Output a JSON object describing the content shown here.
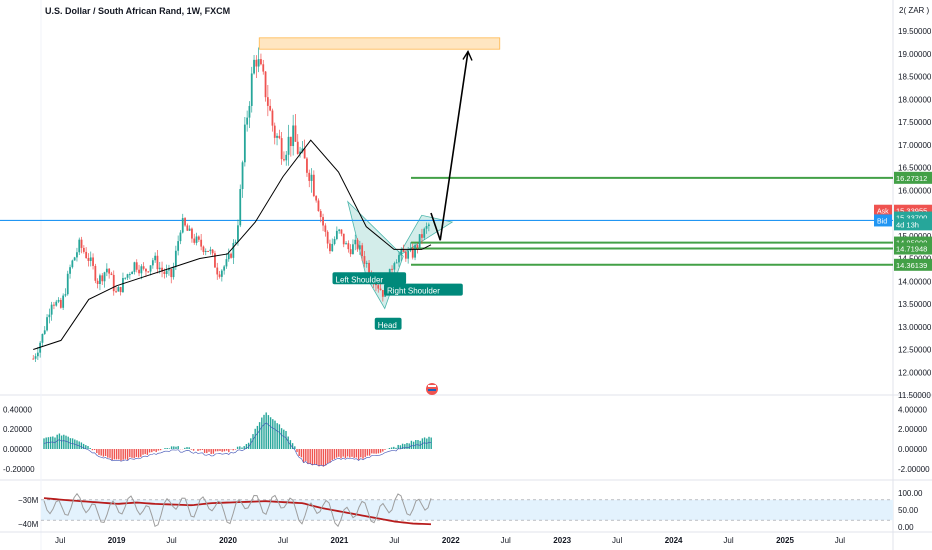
{
  "header": {
    "symbol_title": "U.S. Dollar / South African Rand, 1W, FXCM",
    "currency_badge": "2( ZAR )"
  },
  "colors": {
    "up": "#26a69a",
    "down": "#ef5350",
    "ma_line": "#000000",
    "blue_line": "#2196f3",
    "green_levels": "#43a047",
    "pattern_fill": "#80cbc4",
    "target_box": "#ffe0b2",
    "osc_fill": "#e3f2fd",
    "osc_dark_red": "#b71c1c",
    "osc_grey": "#9e9e9e"
  },
  "chart_data": [
    {
      "type": "candlestick",
      "title": "U.S. Dollar / South African Rand, 1W, FXCM",
      "xlabel": "",
      "ylabel": "",
      "x_ticks": [
        "Jul",
        "2019",
        "Jul",
        "2020",
        "Jul",
        "2021",
        "Jul",
        "2022",
        "Jul",
        "2023",
        "Jul",
        "2024",
        "Jul",
        "2025",
        "Jul"
      ],
      "y_ticks": [
        "19.50000",
        "19.00000",
        "18.50000",
        "18.00000",
        "17.50000",
        "17.00000",
        "16.50000",
        "16.00000",
        "15.50000",
        "15.00000",
        "14.50000",
        "14.00000",
        "13.50000",
        "13.00000",
        "12.50000",
        "12.00000",
        "11.50000"
      ],
      "ylim": [
        11.5,
        19.5
      ],
      "grid": false,
      "price_path": [
        [
          "2018-04",
          12.3
        ],
        [
          "2018-05",
          12.8
        ],
        [
          "2018-06",
          13.6
        ],
        [
          "2018-07",
          13.4
        ],
        [
          "2018-08",
          14.3
        ],
        [
          "2018-09",
          14.8
        ],
        [
          "2018-10",
          14.5
        ],
        [
          "2018-11",
          14.0
        ],
        [
          "2018-12",
          14.3
        ],
        [
          "2019-01",
          13.7
        ],
        [
          "2019-02",
          14.1
        ],
        [
          "2019-03",
          14.4
        ],
        [
          "2019-04",
          14.2
        ],
        [
          "2019-05",
          14.5
        ],
        [
          "2019-06",
          14.2
        ],
        [
          "2019-07",
          14.1
        ],
        [
          "2019-08",
          15.3
        ],
        [
          "2019-09",
          15.0
        ],
        [
          "2019-10",
          14.8
        ],
        [
          "2019-11",
          14.7
        ],
        [
          "2019-12",
          14.2
        ],
        [
          "2020-01",
          14.4
        ],
        [
          "2020-02",
          15.0
        ],
        [
          "2020-03",
          17.5
        ],
        [
          "2020-04",
          19.0
        ],
        [
          "2020-05",
          18.3
        ],
        [
          "2020-06",
          17.3
        ],
        [
          "2020-07",
          16.9
        ],
        [
          "2020-08",
          17.2
        ],
        [
          "2020-09",
          16.7
        ],
        [
          "2020-10",
          16.4
        ],
        [
          "2020-11",
          15.5
        ],
        [
          "2020-12",
          14.7
        ],
        [
          "2021-01",
          15.1
        ],
        [
          "2021-02",
          14.7
        ],
        [
          "2021-03",
          14.8
        ],
        [
          "2021-04",
          14.4
        ],
        [
          "2021-05",
          14.0
        ],
        [
          "2021-06",
          13.7
        ],
        [
          "2021-07",
          14.5
        ],
        [
          "2021-08",
          14.6
        ],
        [
          "2021-09",
          14.6
        ],
        [
          "2021-10",
          15.0
        ],
        [
          "2021-11",
          15.3
        ]
      ],
      "moving_average": [
        [
          "2018-04",
          12.5
        ],
        [
          "2018-07",
          12.7
        ],
        [
          "2018-10",
          13.6
        ],
        [
          "2019-01",
          13.9
        ],
        [
          "2019-04",
          14.1
        ],
        [
          "2019-07",
          14.3
        ],
        [
          "2019-10",
          14.5
        ],
        [
          "2020-01",
          14.6
        ],
        [
          "2020-04",
          15.3
        ],
        [
          "2020-07",
          16.3
        ],
        [
          "2020-10",
          17.1
        ],
        [
          "2021-01",
          16.4
        ],
        [
          "2021-04",
          15.2
        ],
        [
          "2021-07",
          14.7
        ],
        [
          "2021-10",
          14.7
        ],
        [
          "2021-11",
          14.8
        ]
      ],
      "horizontal_levels": [
        {
          "label": "16.27312",
          "value": 16.27312,
          "color": "green"
        },
        {
          "label": "14.85000",
          "value": 14.85,
          "color": "green"
        },
        {
          "label": "14.71948",
          "value": 14.71948,
          "color": "green"
        },
        {
          "label": "14.36139",
          "value": 14.36139,
          "color": "green"
        },
        {
          "label": "15.33630",
          "value": 15.3363,
          "color": "blue"
        }
      ],
      "price_labels": [
        {
          "tag": "Ask",
          "value": "15.33955"
        },
        {
          "tag": "",
          "value": "15.33700"
        },
        {
          "tag": "",
          "value": "4d 13h"
        },
        {
          "tag": "Bid",
          "value": "15.33630"
        }
      ],
      "target_zone": {
        "from_date": "2020-04",
        "to_date": "2022-06",
        "low": 19.1,
        "high": 19.35
      },
      "pattern": {
        "name": "Inverse Head and Shoulders",
        "labels": [
          "Left Shoulder",
          "Head",
          "Right Shoulder"
        ]
      },
      "projection_path": [
        [
          "2021-11",
          15.5
        ],
        [
          "2021-12",
          14.9
        ],
        [
          "2022-03",
          19.05
        ]
      ]
    },
    {
      "type": "histogram",
      "y_ticks_left": [
        "0.40000",
        "0.20000",
        "0.00000",
        "-0.20000"
      ],
      "y_ticks_right": [
        "4.00000",
        "2.00000",
        "0.00000",
        "-2.00000"
      ],
      "ylim": [
        -0.25,
        0.45
      ],
      "values": [
        0.1,
        0.15,
        0.08,
        -0.05,
        -0.12,
        -0.08,
        -0.03,
        0.02,
        0.0,
        -0.04,
        -0.02,
        0.05,
        0.38,
        0.2,
        -0.12,
        -0.18,
        -0.08,
        -0.1,
        -0.04,
        0.02,
        0.08,
        0.12
      ]
    },
    {
      "type": "line",
      "y_ticks_left": [
        "−30M",
        "−40M"
      ],
      "y_ticks_right": [
        "100.00",
        "50.00",
        "0.00"
      ],
      "band": [
        20,
        80
      ],
      "series": [
        {
          "values": [
            85,
            80,
            76,
            72,
            68,
            72,
            68,
            66,
            64,
            70,
            72,
            74,
            76,
            73,
            70,
            56,
            46,
            36,
            26,
            16,
            10,
            8
          ]
        },
        {
          "values": [
            70,
            50,
            80,
            30,
            60,
            70,
            20,
            80,
            50,
            75,
            30,
            80,
            60,
            80,
            30,
            70,
            20,
            60,
            30,
            80,
            50,
            85
          ]
        }
      ]
    }
  ]
}
